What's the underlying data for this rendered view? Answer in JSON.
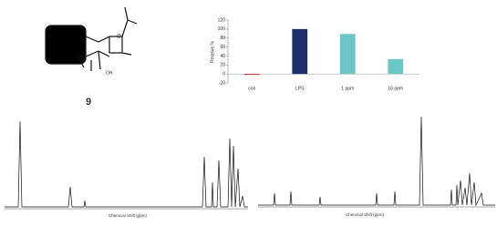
{
  "compound_label": "9",
  "chart_data": {
    "type": "bar",
    "ylabel": "Relative %",
    "categories": [
      "con",
      "LPS",
      "1 ppm",
      "10 ppm"
    ],
    "values": [
      -2,
      100,
      89,
      33
    ],
    "colors": [
      "#c0392b",
      "#1f2f6e",
      "#6cc5c8",
      "#6cc5c8"
    ],
    "ylim": [
      -20,
      120
    ],
    "yticks": [
      -20,
      0,
      20,
      40,
      60,
      80,
      100,
      120
    ]
  },
  "spectra": [
    {
      "x_label": "Chemical Shift (ppm)"
    },
    {
      "x_label": "Chemical Shift (ppm)"
    }
  ]
}
